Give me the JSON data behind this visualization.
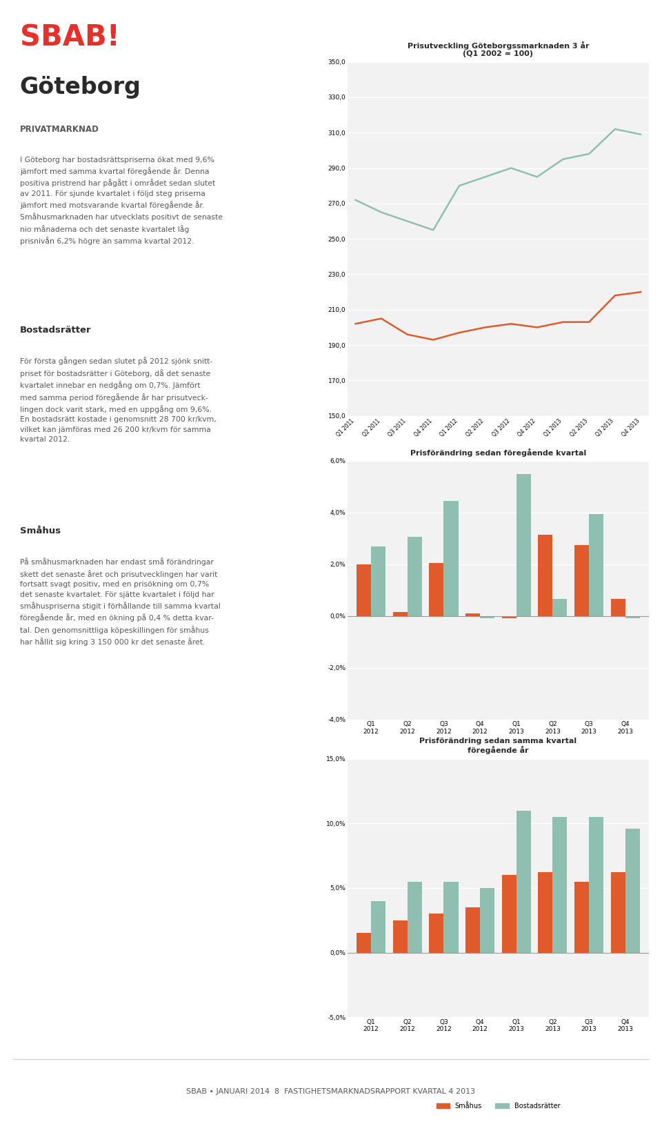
{
  "page_bg": "#ffffff",
  "sbab_red": "#e8302a",
  "sbab_text": "#58585a",
  "chart1_title": "Prisutveckling Göteborgssmarknaden 3 år",
  "chart1_subtitle": "(Q1 2002 = 100)",
  "chart1_xlabels": [
    "Q1 2011",
    "Q2 2011",
    "Q3 2011",
    "Q4 2011",
    "Q1 2012",
    "Q2 2012",
    "Q3 2012",
    "Q4 2012",
    "Q1 2013",
    "Q2 2013",
    "Q3 2013",
    "Q4 2013"
  ],
  "chart1_smahus": [
    272,
    265,
    260,
    255,
    280,
    285,
    290,
    285,
    295,
    298,
    312,
    309
  ],
  "chart1_bostadsratter": [
    202,
    205,
    196,
    193,
    197,
    200,
    202,
    200,
    203,
    203,
    218,
    220
  ],
  "chart1_ylim": [
    150,
    350
  ],
  "chart1_yticks": [
    150.0,
    170.0,
    190.0,
    210.0,
    230.0,
    250.0,
    270.0,
    290.0,
    310.0,
    330.0,
    350.0
  ],
  "chart2_title": "Prisförändring sedan föregående kvartal",
  "chart2_xlabels": [
    "Q1\n2012",
    "Q2\n2012",
    "Q3\n2012",
    "Q4\n2012",
    "Q1\n2013",
    "Q2\n2013",
    "Q3\n2013",
    "Q4\n2013"
  ],
  "chart2_smahus": [
    2.0,
    0.15,
    2.05,
    0.1,
    -0.1,
    3.15,
    2.75,
    0.65
  ],
  "chart2_bostadsratter": [
    2.7,
    3.05,
    4.45,
    -0.1,
    5.5,
    0.65,
    3.95,
    -0.1
  ],
  "chart2_ylim": [
    -4.0,
    6.0
  ],
  "chart2_yticks": [
    -4.0,
    -2.0,
    0.0,
    2.0,
    4.0,
    6.0
  ],
  "chart3_title": "Prisförändring sedan samma kvartal\nföregående år",
  "chart3_xlabels": [
    "Q1\n2012",
    "Q2\n2012",
    "Q3\n2012",
    "Q4\n2012",
    "Q1\n2013",
    "Q2\n2013",
    "Q3\n2013",
    "Q4\n2013"
  ],
  "chart3_smahus": [
    1.5,
    2.5,
    3.0,
    3.5,
    6.0,
    6.2,
    5.5,
    6.2
  ],
  "chart3_bostadsratter": [
    4.0,
    5.5,
    5.5,
    5.0,
    11.0,
    10.5,
    10.5,
    9.6
  ],
  "chart3_ylim": [
    -5.0,
    15.0
  ],
  "chart3_yticks": [
    -5.0,
    0.0,
    5.0,
    10.0,
    15.0
  ],
  "color_smahus": "#e05a2b",
  "color_bostadsratter": "#8fbfb0",
  "footer_text": "SBAB • JANUARI 2014  8  FASTIGHETSMARKNADSRAPPORT KVARTAL 4 2013"
}
